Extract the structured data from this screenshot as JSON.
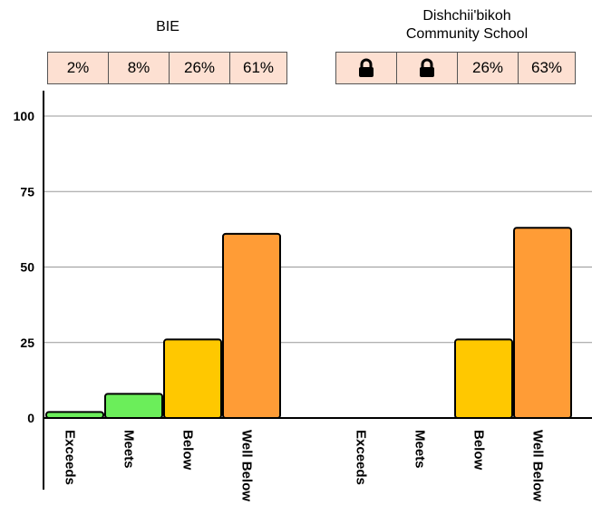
{
  "chart_data": [
    {
      "type": "bar",
      "title": "BIE",
      "categories": [
        "Exceeds",
        "Meets",
        "Below",
        "Well Below"
      ],
      "values": [
        2,
        8,
        26,
        61
      ],
      "labels": [
        "2%",
        "8%",
        "26%",
        "61%"
      ],
      "colors": [
        "#6bee5a",
        "#6bee5a",
        "#ffc800",
        "#ff9c36"
      ],
      "ylim": [
        0,
        100
      ],
      "yticks": [
        "0",
        "25",
        "50",
        "75",
        "100"
      ],
      "grid": true
    },
    {
      "type": "bar",
      "title_lines": [
        "Dishchii'bikoh",
        "Community School"
      ],
      "categories": [
        "Exceeds",
        "Meets",
        "Below",
        "Well Below"
      ],
      "values": [
        null,
        null,
        26,
        63
      ],
      "labels": [
        "lock",
        "lock",
        "26%",
        "63%"
      ],
      "colors": [
        "#6bee5a",
        "#6bee5a",
        "#ffc800",
        "#ff9c36"
      ],
      "ylim": [
        0,
        100
      ],
      "grid": true
    }
  ]
}
